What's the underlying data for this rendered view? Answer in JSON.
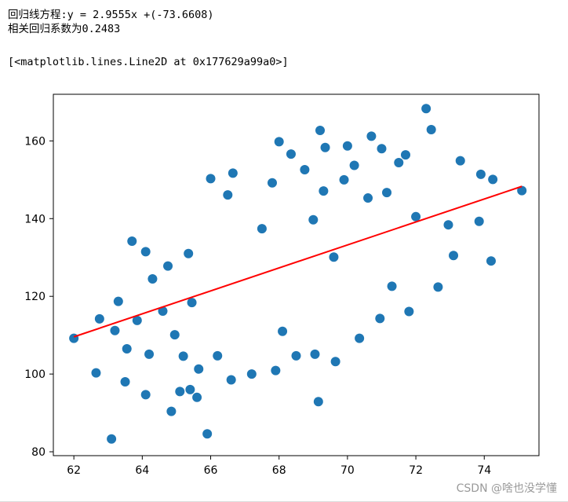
{
  "output": {
    "line1": "回归线方程:y = 2.9555x +(-73.6608)",
    "line2": "相关回归系数为0.2483",
    "repr": "[<matplotlib.lines.Line2D at 0x177629a99a0>]"
  },
  "watermark": "CSDN @啥也没学懂",
  "chart_data": {
    "type": "scatter",
    "title": "",
    "xlabel": "",
    "ylabel": "",
    "xlim": [
      61.4,
      75.6
    ],
    "ylim": [
      79,
      172
    ],
    "xticks": [
      62,
      64,
      66,
      68,
      70,
      72,
      74
    ],
    "yticks": [
      80,
      100,
      120,
      140,
      160
    ],
    "grid": false,
    "point_color": "#1f77b4",
    "line_color": "#ff0000",
    "regression": {
      "slope": 2.9555,
      "intercept": -73.6608,
      "x_range": [
        62.0,
        75.1
      ]
    },
    "series": [
      {
        "type": "scatter",
        "points": [
          [
            62.0,
            109.2
          ],
          [
            62.65,
            100.3
          ],
          [
            62.75,
            114.2
          ],
          [
            63.1,
            83.3
          ],
          [
            63.2,
            111.2
          ],
          [
            63.3,
            118.7
          ],
          [
            63.5,
            98.0
          ],
          [
            63.55,
            106.5
          ],
          [
            63.7,
            134.2
          ],
          [
            63.85,
            113.8
          ],
          [
            64.1,
            94.7
          ],
          [
            64.1,
            131.5
          ],
          [
            64.2,
            105.1
          ],
          [
            64.3,
            124.5
          ],
          [
            64.6,
            116.2
          ],
          [
            64.75,
            127.8
          ],
          [
            64.85,
            90.4
          ],
          [
            64.95,
            110.1
          ],
          [
            65.1,
            95.5
          ],
          [
            65.2,
            104.6
          ],
          [
            65.35,
            131.0
          ],
          [
            65.4,
            96.0
          ],
          [
            65.45,
            118.4
          ],
          [
            65.6,
            94.0
          ],
          [
            65.65,
            101.3
          ],
          [
            65.9,
            84.6
          ],
          [
            66.0,
            150.3
          ],
          [
            66.2,
            104.7
          ],
          [
            66.5,
            146.1
          ],
          [
            66.65,
            151.7
          ],
          [
            66.6,
            98.5
          ],
          [
            67.2,
            100.0
          ],
          [
            67.5,
            137.4
          ],
          [
            67.8,
            149.2
          ],
          [
            67.9,
            100.9
          ],
          [
            68.0,
            159.8
          ],
          [
            68.1,
            111.0
          ],
          [
            68.35,
            156.6
          ],
          [
            68.5,
            104.7
          ],
          [
            68.75,
            152.6
          ],
          [
            69.0,
            139.7
          ],
          [
            69.05,
            105.1
          ],
          [
            69.15,
            92.9
          ],
          [
            69.2,
            162.7
          ],
          [
            69.3,
            147.1
          ],
          [
            69.35,
            158.3
          ],
          [
            69.6,
            130.1
          ],
          [
            69.65,
            103.2
          ],
          [
            69.9,
            150.0
          ],
          [
            70.0,
            158.7
          ],
          [
            70.2,
            153.7
          ],
          [
            70.35,
            109.2
          ],
          [
            70.6,
            145.3
          ],
          [
            70.7,
            161.2
          ],
          [
            70.95,
            114.3
          ],
          [
            71.0,
            158.0
          ],
          [
            71.15,
            146.7
          ],
          [
            71.3,
            122.6
          ],
          [
            71.5,
            154.4
          ],
          [
            71.7,
            156.4
          ],
          [
            71.8,
            116.1
          ],
          [
            72.0,
            140.5
          ],
          [
            72.3,
            168.3
          ],
          [
            72.45,
            162.9
          ],
          [
            72.65,
            122.4
          ],
          [
            72.95,
            138.4
          ],
          [
            73.1,
            130.5
          ],
          [
            73.3,
            154.9
          ],
          [
            73.85,
            139.3
          ],
          [
            73.9,
            151.4
          ],
          [
            74.2,
            129.1
          ],
          [
            74.25,
            150.1
          ],
          [
            75.1,
            147.2
          ]
        ]
      }
    ]
  }
}
